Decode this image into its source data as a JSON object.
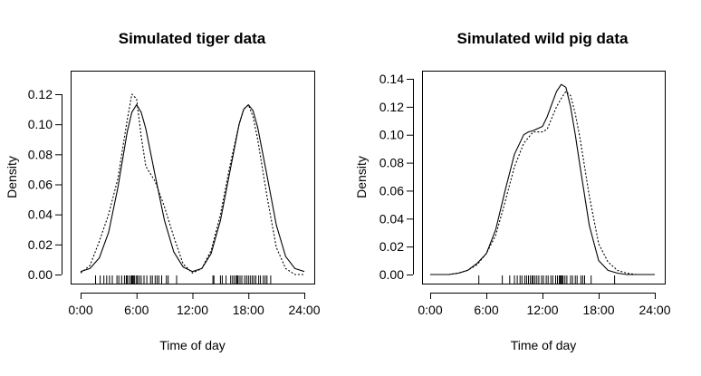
{
  "chart_data": [
    {
      "type": "line",
      "title": "Simulated tiger data",
      "xlabel": "Time of day",
      "ylabel": "Density",
      "xlim": [
        0,
        24
      ],
      "ylim": [
        0,
        0.12
      ],
      "x_ticks": [
        0,
        6,
        12,
        18,
        24
      ],
      "x_tick_labels": [
        "0:00",
        "6:00",
        "12:00",
        "18:00",
        "24:00"
      ],
      "y_ticks": [
        0,
        0.02,
        0.04,
        0.06,
        0.08,
        0.1,
        0.12
      ],
      "y_tick_labels": [
        "0.00",
        "0.02",
        "0.04",
        "0.06",
        "0.08",
        "0.10",
        "0.12"
      ],
      "grid": false,
      "series": [
        {
          "style": "solid",
          "x": [
            0,
            1,
            2,
            3,
            4,
            5,
            5.5,
            6,
            6.5,
            7,
            8,
            9,
            10,
            11,
            12,
            13,
            14,
            15,
            16,
            17,
            17.5,
            18,
            18.5,
            19,
            20,
            21,
            22,
            23,
            24
          ],
          "y": [
            0.002,
            0.004,
            0.011,
            0.028,
            0.058,
            0.095,
            0.108,
            0.113,
            0.108,
            0.097,
            0.066,
            0.036,
            0.015,
            0.005,
            0.002,
            0.004,
            0.014,
            0.036,
            0.068,
            0.1,
            0.11,
            0.113,
            0.109,
            0.098,
            0.066,
            0.033,
            0.012,
            0.004,
            0.002
          ]
        },
        {
          "style": "dashed",
          "x": [
            0,
            1,
            2,
            3,
            4,
            5,
            5.5,
            6,
            6.5,
            7,
            8,
            9,
            10,
            11,
            12,
            13,
            14,
            15,
            16,
            17,
            17.5,
            18,
            18.5,
            19,
            20,
            21,
            22,
            23,
            24
          ],
          "y": [
            0.001,
            0.006,
            0.022,
            0.04,
            0.064,
            0.103,
            0.12,
            0.117,
            0.092,
            0.072,
            0.062,
            0.045,
            0.025,
            0.007,
            0.001,
            0.004,
            0.016,
            0.04,
            0.072,
            0.1,
            0.11,
            0.113,
            0.105,
            0.09,
            0.052,
            0.018,
            0.004,
            0.0,
            0.0
          ]
        }
      ],
      "rug": [
        1.6,
        2.1,
        2.5,
        2.8,
        3.1,
        3.4,
        3.9,
        4.1,
        4.4,
        4.7,
        4.9,
        5.0,
        5.2,
        5.4,
        5.5,
        5.6,
        5.7,
        5.8,
        6.0,
        6.1,
        6.3,
        6.5,
        6.8,
        7.1,
        7.5,
        7.7,
        8.0,
        8.2,
        8.4,
        8.7,
        9.2,
        9.4,
        10.3,
        14.2,
        14.3,
        15.0,
        15.2,
        15.6,
        16.1,
        16.3,
        16.5,
        16.7,
        16.8,
        16.9,
        17.1,
        17.3,
        17.6,
        17.8,
        18.0,
        18.2,
        18.4,
        18.6,
        18.8,
        19.1,
        19.3,
        19.6,
        19.8,
        20.0,
        20.4
      ]
    },
    {
      "type": "line",
      "title": "Simulated wild pig data",
      "xlabel": "Time of day",
      "ylabel": "Density",
      "xlim": [
        0,
        24
      ],
      "ylim": [
        0,
        0.14
      ],
      "x_ticks": [
        0,
        6,
        12,
        18,
        24
      ],
      "x_tick_labels": [
        "0:00",
        "6:00",
        "12:00",
        "18:00",
        "24:00"
      ],
      "y_ticks": [
        0,
        0.02,
        0.04,
        0.06,
        0.08,
        0.1,
        0.12,
        0.14
      ],
      "y_tick_labels": [
        "0.00",
        "0.02",
        "0.04",
        "0.06",
        "0.08",
        "0.10",
        "0.12",
        "0.14"
      ],
      "grid": false,
      "series": [
        {
          "style": "solid",
          "x": [
            0,
            2,
            3,
            4,
            5,
            6,
            7,
            8,
            9,
            10,
            10.5,
            11,
            12,
            12.5,
            13,
            13.5,
            14,
            14.5,
            15,
            15.5,
            16,
            17,
            18,
            19,
            20,
            21,
            24
          ],
          "y": [
            0,
            0,
            0.001,
            0.003,
            0.008,
            0.015,
            0.032,
            0.06,
            0.086,
            0.1,
            0.102,
            0.103,
            0.106,
            0.113,
            0.122,
            0.131,
            0.136,
            0.134,
            0.12,
            0.1,
            0.078,
            0.035,
            0.01,
            0.003,
            0.001,
            0,
            0
          ]
        },
        {
          "style": "dashed",
          "x": [
            0,
            2,
            3,
            4,
            5,
            6,
            7,
            8,
            9,
            10,
            11,
            12,
            12.5,
            13,
            13.5,
            14,
            14.5,
            15,
            15.5,
            16,
            17,
            18,
            19,
            20,
            21,
            22,
            24
          ],
          "y": [
            0,
            0,
            0.001,
            0.003,
            0.007,
            0.015,
            0.028,
            0.052,
            0.077,
            0.094,
            0.102,
            0.102,
            0.104,
            0.112,
            0.12,
            0.126,
            0.131,
            0.128,
            0.115,
            0.098,
            0.056,
            0.022,
            0.009,
            0.003,
            0.001,
            0,
            0
          ]
        }
      ],
      "rug": [
        5.2,
        7.7,
        8.5,
        9.0,
        9.3,
        9.6,
        9.8,
        10.1,
        10.3,
        10.5,
        10.7,
        10.9,
        11.0,
        11.2,
        11.4,
        11.6,
        11.9,
        12.1,
        12.4,
        12.6,
        12.9,
        13.1,
        13.4,
        13.6,
        13.8,
        13.9,
        14.0,
        14.1,
        14.2,
        14.4,
        14.6,
        15.0,
        15.2,
        15.5,
        15.7,
        16.1,
        16.3,
        16.5,
        17.2,
        19.7
      ]
    }
  ]
}
